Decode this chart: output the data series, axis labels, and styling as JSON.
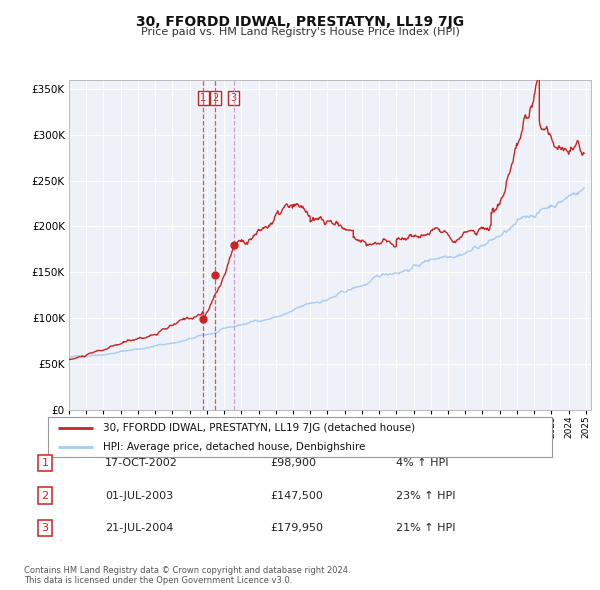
{
  "title": "30, FFORDD IDWAL, PRESTATYN, LL19 7JG",
  "subtitle": "Price paid vs. HM Land Registry's House Price Index (HPI)",
  "legend_line1": "30, FFORDD IDWAL, PRESTATYN, LL19 7JG (detached house)",
  "legend_line2": "HPI: Average price, detached house, Denbighshire",
  "footer1": "Contains HM Land Registry data © Crown copyright and database right 2024.",
  "footer2": "This data is licensed under the Open Government Licence v3.0.",
  "transactions": [
    {
      "num": "1",
      "date": "17-OCT-2002",
      "price": "£98,900",
      "pct": "4% ↑ HPI",
      "x_year": 2002.79,
      "y_val": 98900
    },
    {
      "num": "2",
      "date": "01-JUL-2003",
      "price": "£147,500",
      "pct": "23% ↑ HPI",
      "x_year": 2003.5,
      "y_val": 147500
    },
    {
      "num": "3",
      "date": "21-JUL-2004",
      "price": "£179,950",
      "pct": "21% ↑ HPI",
      "x_year": 2004.55,
      "y_val": 179950
    }
  ],
  "price_line_color": "#cc2222",
  "hpi_line_color": "#aaccee",
  "point_color": "#cc2222",
  "vline_color_red": "#dd4444",
  "vline_color_pink": "#cc99cc",
  "ylim": [
    0,
    360000
  ],
  "yticks": [
    0,
    50000,
    100000,
    150000,
    200000,
    250000,
    300000,
    350000
  ],
  "xlim_start": 1995.0,
  "xlim_end": 2025.3,
  "plot_bg_color": "#eef2f8",
  "grid_color": "#ffffff",
  "box_edge_color": "#cc2222"
}
